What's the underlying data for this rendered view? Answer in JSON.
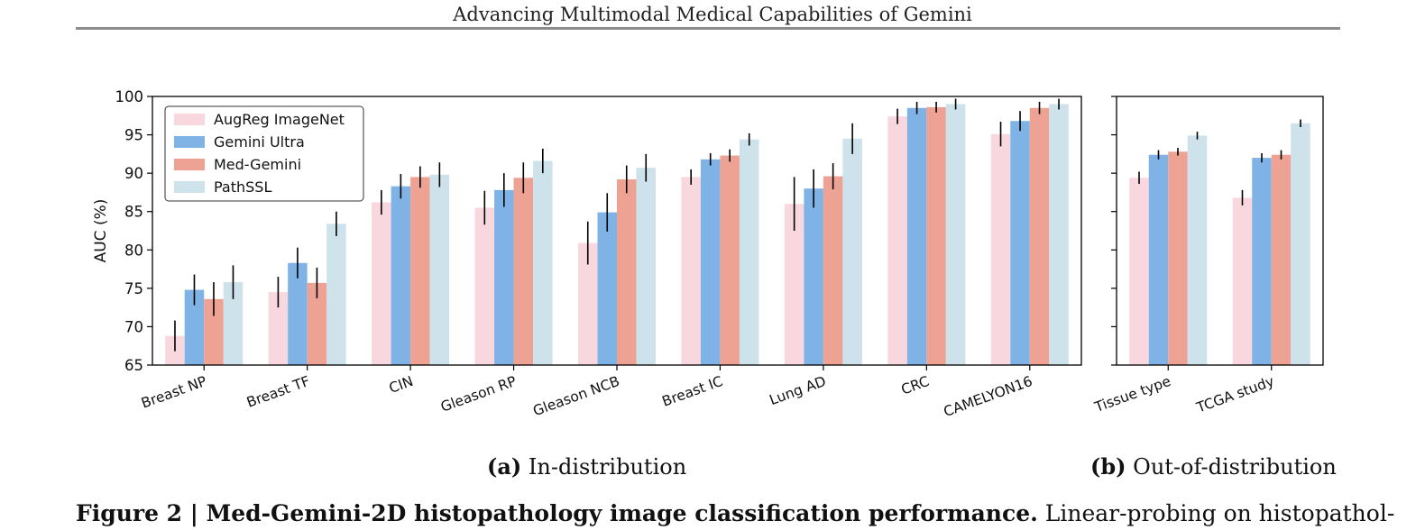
{
  "header": {
    "title": "Advancing Multimodal Medical Capabilities of Gemini"
  },
  "subcaptions": {
    "a": {
      "tag": "(a)",
      "text": "In-distribution"
    },
    "b": {
      "tag": "(b)",
      "text": "Out-of-distribution"
    }
  },
  "caption": {
    "label": "Figure 2 | Med-Gemini-2D histopathology image classification performance.",
    "text": "Linear-probing on histopathol-"
  },
  "colors": {
    "AugReg ImageNet": "#f8d7df",
    "Gemini Ultra": "#7fb3e6",
    "Med-Gemini": "#eda293",
    "PathSSL": "#cde2ea"
  },
  "chart_data": [
    {
      "type": "bar",
      "ylabel": "AUC (%)",
      "ylim": [
        65,
        100
      ],
      "yticks": [
        65,
        70,
        75,
        80,
        85,
        90,
        95,
        100
      ],
      "legend": "top-left",
      "categories": [
        "Breast NP",
        "Breast TF",
        "CIN",
        "Gleason RP",
        "Gleason NCB",
        "Breast IC",
        "Lung AD",
        "CRC",
        "CAMELYON16"
      ],
      "series": [
        {
          "name": "AugReg ImageNet",
          "values": [
            68.8,
            74.5,
            86.2,
            85.5,
            80.9,
            89.5,
            86.0,
            97.4,
            95.1
          ],
          "err": [
            2.0,
            2.0,
            1.6,
            2.2,
            2.8,
            1.0,
            3.5,
            1.0,
            1.6
          ]
        },
        {
          "name": "Gemini Ultra",
          "values": [
            74.8,
            78.3,
            88.3,
            87.8,
            84.9,
            91.8,
            88.0,
            98.5,
            96.8
          ],
          "err": [
            2.0,
            2.0,
            1.6,
            2.2,
            2.5,
            0.8,
            2.5,
            0.8,
            1.3
          ]
        },
        {
          "name": "Med-Gemini",
          "values": [
            73.6,
            75.7,
            89.5,
            89.4,
            89.2,
            92.3,
            89.6,
            98.6,
            98.5
          ],
          "err": [
            2.2,
            2.0,
            1.4,
            2.0,
            1.8,
            0.8,
            1.7,
            0.7,
            0.8
          ]
        },
        {
          "name": "PathSSL",
          "values": [
            75.8,
            83.4,
            89.8,
            91.6,
            90.7,
            94.4,
            94.5,
            99.0,
            99.0
          ],
          "err": [
            2.2,
            1.6,
            1.6,
            1.6,
            1.8,
            0.8,
            2.0,
            0.7,
            0.7
          ]
        }
      ]
    },
    {
      "type": "bar",
      "ylim": [
        65,
        100
      ],
      "categories": [
        "Tissue type",
        "TCGA study"
      ],
      "series": [
        {
          "name": "AugReg ImageNet",
          "values": [
            89.4,
            86.8
          ],
          "err": [
            0.8,
            1.0
          ]
        },
        {
          "name": "Gemini Ultra",
          "values": [
            92.4,
            92.0
          ],
          "err": [
            0.6,
            0.6
          ]
        },
        {
          "name": "Med-Gemini",
          "values": [
            92.8,
            92.4
          ],
          "err": [
            0.5,
            0.6
          ]
        },
        {
          "name": "PathSSL",
          "values": [
            94.9,
            96.5
          ],
          "err": [
            0.5,
            0.5
          ]
        }
      ]
    }
  ]
}
